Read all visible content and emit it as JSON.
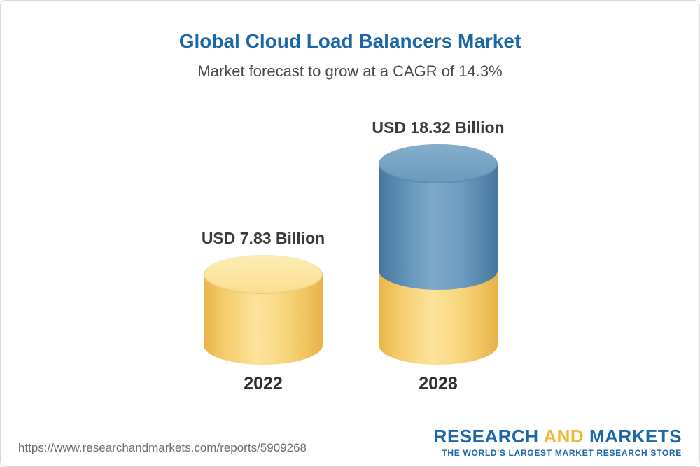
{
  "chart_data": {
    "type": "bar",
    "title": "Global Cloud Load Balancers Market",
    "subtitle": "Market forecast to grow at a CAGR of 14.3%",
    "categories": [
      "2022",
      "2028"
    ],
    "values": [
      7.83,
      18.32
    ],
    "value_labels": [
      "USD 7.83 Billion",
      "USD 18.32 Billion"
    ],
    "unit": "USD Billion",
    "cagr_percent": 14.3,
    "ylim": [
      0,
      20
    ],
    "grid": false,
    "legend": false,
    "bar_style": "3d-cylinder",
    "colors": {
      "base_gold": "#f3ca68",
      "growth_blue": "#6496ba",
      "title_blue": "#1b67a8"
    },
    "bar_segments": [
      {
        "category": "2022",
        "segments": [
          {
            "color": "#f3ca68",
            "value": 7.83
          }
        ]
      },
      {
        "category": "2028",
        "segments": [
          {
            "color": "#f3ca68",
            "value": 7.83
          },
          {
            "color": "#6496ba",
            "value": 10.49
          }
        ]
      }
    ]
  },
  "footer": {
    "source_url": "https://www.researchandmarkets.com/reports/5909268",
    "logo": {
      "word1": "RESEARCH",
      "word2": "AND",
      "word3": "MARKETS",
      "tagline": "THE WORLD'S LARGEST MARKET RESEARCH STORE",
      "brand_blue": "#1b67a8",
      "brand_gold": "#f2b738"
    }
  }
}
